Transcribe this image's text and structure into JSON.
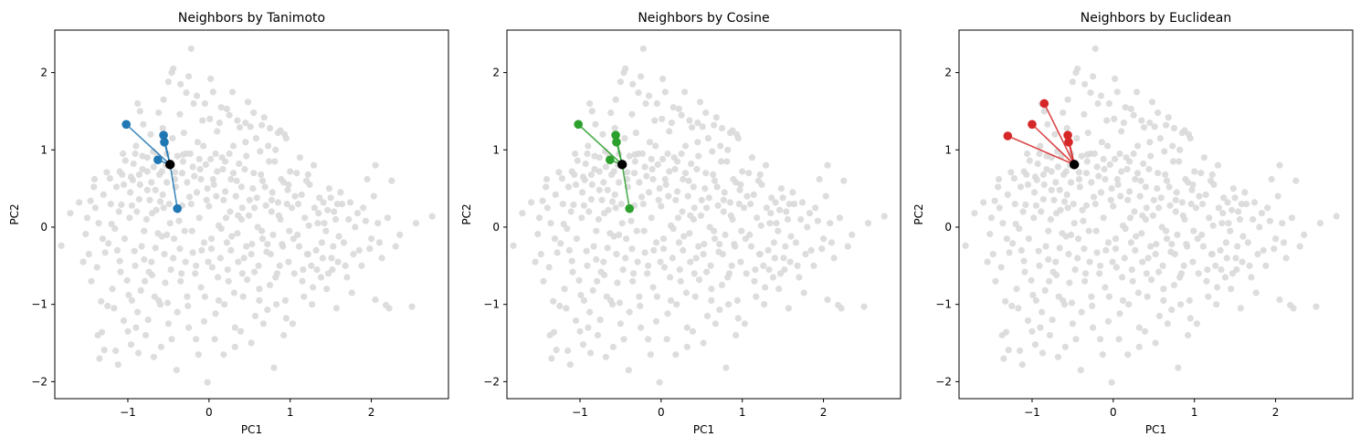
{
  "chart_data": [
    {
      "type": "scatter",
      "title": "Neighbors by Tanimoto",
      "xlabel": "PC1",
      "ylabel": "PC2",
      "xlim": [
        -1.9,
        2.95
      ],
      "ylim": [
        -2.22,
        2.55
      ],
      "xticks": [
        -1,
        0,
        1,
        2
      ],
      "yticks": [
        -2,
        -1,
        0,
        1,
        2
      ],
      "grid": false,
      "background_color": "#d9d9d9",
      "neighbor_color": "#1f77b4",
      "query_color": "#000000",
      "query": {
        "x": -0.48,
        "y": 0.81
      },
      "neighbors": [
        {
          "x": -1.02,
          "y": 1.33
        },
        {
          "x": -0.56,
          "y": 1.19
        },
        {
          "x": -0.55,
          "y": 1.1
        },
        {
          "x": -0.63,
          "y": 0.87
        },
        {
          "x": -0.39,
          "y": 0.24
        }
      ]
    },
    {
      "type": "scatter",
      "title": "Neighbors by Cosine",
      "xlabel": "PC1",
      "ylabel": "PC2",
      "xlim": [
        -1.9,
        2.95
      ],
      "ylim": [
        -2.22,
        2.55
      ],
      "xticks": [
        -1,
        0,
        1,
        2
      ],
      "yticks": [
        -2,
        -1,
        0,
        1,
        2
      ],
      "grid": false,
      "background_color": "#d9d9d9",
      "neighbor_color": "#2ca02c",
      "query_color": "#000000",
      "query": {
        "x": -0.48,
        "y": 0.81
      },
      "neighbors": [
        {
          "x": -1.02,
          "y": 1.33
        },
        {
          "x": -0.56,
          "y": 1.19
        },
        {
          "x": -0.55,
          "y": 1.1
        },
        {
          "x": -0.63,
          "y": 0.87
        },
        {
          "x": -0.39,
          "y": 0.24
        }
      ]
    },
    {
      "type": "scatter",
      "title": "Neighbors by Euclidean",
      "xlabel": "PC1",
      "ylabel": "PC2",
      "xlim": [
        -1.9,
        2.95
      ],
      "ylim": [
        -2.22,
        2.55
      ],
      "xticks": [
        -1,
        0,
        1,
        2
      ],
      "yticks": [
        -2,
        -1,
        0,
        1,
        2
      ],
      "grid": false,
      "background_color": "#d9d9d9",
      "neighbor_color": "#d62728",
      "query_color": "#000000",
      "query": {
        "x": -0.48,
        "y": 0.81
      },
      "neighbors": [
        {
          "x": -1.3,
          "y": 1.18
        },
        {
          "x": -1.0,
          "y": 1.33
        },
        {
          "x": -0.85,
          "y": 1.6
        },
        {
          "x": -0.56,
          "y": 1.19
        },
        {
          "x": -0.55,
          "y": 1.1
        }
      ]
    }
  ],
  "background_points": [
    [
      -1.82,
      -0.24
    ],
    [
      -1.71,
      0.18
    ],
    [
      -1.52,
      -0.09
    ],
    [
      -1.46,
      0.34
    ],
    [
      -1.4,
      0.25
    ],
    [
      -1.38,
      -0.52
    ],
    [
      -1.33,
      -0.96
    ],
    [
      -1.32,
      -1.36
    ],
    [
      -1.29,
      -1.59
    ],
    [
      -1.26,
      0.71
    ],
    [
      -1.24,
      -0.21
    ],
    [
      -1.2,
      0.04
    ],
    [
      -1.17,
      -1.05
    ],
    [
      -1.14,
      0.52
    ],
    [
      -1.12,
      -1.78
    ],
    [
      -1.1,
      -0.44
    ],
    [
      -1.08,
      0.29
    ],
    [
      -1.05,
      -1.21
    ],
    [
      -1.03,
      0.86
    ],
    [
      -1.01,
      -0.69
    ],
    [
      -0.98,
      0.12
    ],
    [
      -0.96,
      -1.52
    ],
    [
      -0.94,
      0.61
    ],
    [
      -0.92,
      -0.31
    ],
    [
      -0.9,
      1.05
    ],
    [
      -0.88,
      -1.1
    ],
    [
      -0.86,
      0.36
    ],
    [
      -0.84,
      -0.82
    ],
    [
      -0.82,
      0.75
    ],
    [
      -0.8,
      -0.05
    ],
    [
      -0.78,
      -1.4
    ],
    [
      -0.76,
      0.48
    ],
    [
      -0.74,
      -0.58
    ],
    [
      -0.72,
      1.2
    ],
    [
      -0.7,
      0.18
    ],
    [
      -0.68,
      -1.68
    ],
    [
      -0.66,
      -0.27
    ],
    [
      -0.64,
      0.92
    ],
    [
      -0.62,
      -0.95
    ],
    [
      -0.6,
      0.33
    ],
    [
      -0.58,
      -0.12
    ],
    [
      -0.56,
      1.65
    ],
    [
      -0.54,
      -0.72
    ],
    [
      -0.52,
      0.58
    ],
    [
      -0.5,
      -1.25
    ],
    [
      -0.48,
      0.05
    ],
    [
      -0.46,
      2.0
    ],
    [
      -0.44,
      -0.4
    ],
    [
      -0.42,
      0.71
    ],
    [
      -0.4,
      -1.85
    ],
    [
      -0.38,
      0.22
    ],
    [
      -0.36,
      1.46
    ],
    [
      -0.34,
      -0.6
    ],
    [
      -0.32,
      0.94
    ],
    [
      -0.3,
      -0.05
    ],
    [
      -0.28,
      1.74
    ],
    [
      -0.26,
      -1.02
    ],
    [
      -0.24,
      0.39
    ],
    [
      -0.22,
      2.31
    ],
    [
      -0.2,
      -0.33
    ],
    [
      -0.18,
      0.66
    ],
    [
      -0.16,
      -1.45
    ],
    [
      -0.14,
      1.1
    ],
    [
      -0.12,
      0.12
    ],
    [
      -0.1,
      -0.78
    ],
    [
      -0.08,
      1.38
    ],
    [
      -0.06,
      -0.2
    ],
    [
      -0.04,
      0.81
    ],
    [
      -0.02,
      -2.01
    ],
    [
      0.0,
      0.27
    ],
    [
      0.02,
      1.92
    ],
    [
      0.04,
      -0.52
    ],
    [
      0.06,
      0.55
    ],
    [
      0.08,
      -1.12
    ],
    [
      0.1,
      1.24
    ],
    [
      0.12,
      0.02
    ],
    [
      0.14,
      -0.4
    ],
    [
      0.16,
      0.9
    ],
    [
      0.18,
      -1.65
    ],
    [
      0.2,
      0.46
    ],
    [
      0.22,
      1.53
    ],
    [
      0.24,
      -0.7
    ],
    [
      0.26,
      0.2
    ],
    [
      0.28,
      -0.12
    ],
    [
      0.3,
      1.05
    ],
    [
      0.32,
      -1.3
    ],
    [
      0.34,
      0.6
    ],
    [
      0.36,
      -0.45
    ],
    [
      0.38,
      1.29
    ],
    [
      0.4,
      0.1
    ],
    [
      0.42,
      -0.9
    ],
    [
      0.44,
      0.75
    ],
    [
      0.46,
      -0.25
    ],
    [
      0.48,
      1.62
    ],
    [
      0.5,
      0.35
    ],
    [
      0.52,
      -1.5
    ],
    [
      0.54,
      0.5
    ],
    [
      0.56,
      -0.58
    ],
    [
      0.58,
      1.15
    ],
    [
      0.6,
      0.0
    ],
    [
      0.62,
      -0.8
    ],
    [
      0.64,
      0.68
    ],
    [
      0.66,
      -0.15
    ],
    [
      0.68,
      1.42
    ],
    [
      0.7,
      0.28
    ],
    [
      0.72,
      -1.07
    ],
    [
      0.74,
      0.85
    ],
    [
      0.76,
      -0.35
    ],
    [
      0.78,
      0.45
    ],
    [
      0.8,
      -1.82
    ],
    [
      0.82,
      1.0
    ],
    [
      0.84,
      -0.6
    ],
    [
      0.86,
      0.15
    ],
    [
      0.88,
      1.25
    ],
    [
      0.9,
      -0.22
    ],
    [
      0.92,
      0.58
    ],
    [
      0.94,
      -0.95
    ],
    [
      0.96,
      0.3
    ],
    [
      0.98,
      -0.45
    ],
    [
      1.0,
      0.72
    ],
    [
      1.03,
      -1.25
    ],
    [
      1.06,
      0.4
    ],
    [
      1.09,
      -0.1
    ],
    [
      1.12,
      0.9
    ],
    [
      1.15,
      -0.7
    ],
    [
      1.18,
      0.12
    ],
    [
      1.21,
      -0.35
    ],
    [
      1.24,
      0.55
    ],
    [
      1.27,
      -1.0
    ],
    [
      1.3,
      0.25
    ],
    [
      1.33,
      -0.55
    ],
    [
      1.36,
      0.38
    ],
    [
      1.39,
      -0.2
    ],
    [
      1.42,
      0.05
    ],
    [
      1.45,
      -0.8
    ],
    [
      1.48,
      0.5
    ],
    [
      1.51,
      -0.4
    ],
    [
      1.54,
      0.2
    ],
    [
      1.57,
      -1.05
    ],
    [
      1.6,
      -0.12
    ],
    [
      1.64,
      0.3
    ],
    [
      1.68,
      -0.5
    ],
    [
      1.72,
      0.1
    ],
    [
      1.76,
      -0.85
    ],
    [
      1.8,
      0.0
    ],
    [
      1.85,
      -0.3
    ],
    [
      1.9,
      0.25
    ],
    [
      1.95,
      0.62
    ],
    [
      2.0,
      -0.15
    ],
    [
      2.05,
      0.8
    ],
    [
      2.1,
      -0.2
    ],
    [
      2.18,
      -1.01
    ],
    [
      2.22,
      -1.05
    ],
    [
      2.25,
      0.6
    ],
    [
      2.35,
      -0.1
    ],
    [
      2.5,
      -1.03
    ],
    [
      2.55,
      0.05
    ],
    [
      2.75,
      0.14
    ],
    [
      2.05,
      -0.94
    ],
    [
      1.22,
      -0.35
    ],
    [
      -1.55,
      -0.45
    ],
    [
      -1.5,
      0.12
    ],
    [
      -1.45,
      -0.7
    ],
    [
      -1.42,
      0.52
    ],
    [
      -1.36,
      0.05
    ],
    [
      -1.35,
      -1.7
    ],
    [
      -1.3,
      0.42
    ],
    [
      -1.28,
      -0.33
    ],
    [
      -1.22,
      0.63
    ],
    [
      -1.19,
      -0.8
    ],
    [
      -1.16,
      -0.02
    ],
    [
      -1.15,
      -1.6
    ],
    [
      -1.11,
      0.2
    ],
    [
      -1.09,
      -0.58
    ],
    [
      -1.07,
      0.68
    ],
    [
      -1.04,
      -0.15
    ],
    [
      -1.0,
      -1.35
    ],
    [
      -0.97,
      0.45
    ],
    [
      -0.95,
      -0.95
    ],
    [
      -0.93,
      0.82
    ],
    [
      -0.91,
      -0.5
    ],
    [
      -0.89,
      0.2
    ],
    [
      -0.87,
      -1.63
    ],
    [
      -0.85,
      0.55
    ],
    [
      -0.83,
      -0.25
    ],
    [
      -0.81,
      1.33
    ],
    [
      -0.79,
      -0.7
    ],
    [
      -0.77,
      0.1
    ],
    [
      -0.75,
      -1.2
    ],
    [
      -0.73,
      0.35
    ],
    [
      -0.71,
      -0.45
    ],
    [
      -0.69,
      0.98
    ],
    [
      -0.67,
      -0.9
    ],
    [
      -0.65,
      0.22
    ],
    [
      -0.63,
      -0.08
    ],
    [
      -0.61,
      0.68
    ],
    [
      -0.59,
      -1.55
    ],
    [
      -0.57,
      0.42
    ],
    [
      -0.55,
      -0.35
    ],
    [
      -0.53,
      0.8
    ],
    [
      -0.51,
      -0.98
    ],
    [
      -0.49,
      0.3
    ],
    [
      -0.47,
      -0.55
    ],
    [
      -0.45,
      1.15
    ],
    [
      -0.43,
      -0.15
    ],
    [
      -0.41,
      0.52
    ],
    [
      -0.39,
      -1.1
    ],
    [
      -0.37,
      0.08
    ],
    [
      -0.35,
      -0.7
    ],
    [
      -0.33,
      0.28
    ],
    [
      -0.31,
      1.22
    ],
    [
      -0.29,
      -0.45
    ],
    [
      -0.27,
      0.58
    ],
    [
      -0.25,
      -1.3
    ],
    [
      -0.23,
      0.95
    ],
    [
      -0.21,
      -0.05
    ],
    [
      -0.19,
      1.6
    ],
    [
      -0.17,
      -0.6
    ],
    [
      -0.15,
      0.45
    ],
    [
      -0.13,
      -1.65
    ],
    [
      -0.11,
      0.75
    ],
    [
      -0.09,
      -0.3
    ],
    [
      -0.07,
      1.05
    ],
    [
      -0.05,
      -0.9
    ],
    [
      -0.03,
      0.35
    ],
    [
      -0.01,
      -0.45
    ],
    [
      0.01,
      1.4
    ],
    [
      0.03,
      -0.15
    ],
    [
      0.05,
      0.62
    ],
    [
      0.07,
      -1.45
    ],
    [
      0.09,
      0.4
    ],
    [
      0.11,
      -0.65
    ],
    [
      0.13,
      1.35
    ],
    [
      0.15,
      -0.02
    ],
    [
      0.17,
      0.75
    ],
    [
      0.19,
      -1.0
    ],
    [
      0.21,
      0.12
    ],
    [
      0.23,
      -0.55
    ],
    [
      0.25,
      0.95
    ],
    [
      0.27,
      -0.3
    ],
    [
      0.29,
      1.75
    ],
    [
      0.31,
      -0.85
    ],
    [
      0.33,
      0.4
    ],
    [
      0.35,
      -0.08
    ],
    [
      0.37,
      0.82
    ],
    [
      0.39,
      -1.35
    ],
    [
      0.41,
      0.25
    ],
    [
      0.43,
      -0.4
    ],
    [
      0.45,
      1.1
    ],
    [
      0.47,
      -0.68
    ],
    [
      0.49,
      0.15
    ],
    [
      0.51,
      1.3
    ],
    [
      0.53,
      -0.22
    ],
    [
      0.55,
      0.7
    ],
    [
      0.57,
      -1.15
    ],
    [
      0.59,
      0.38
    ],
    [
      0.61,
      -0.5
    ],
    [
      0.63,
      0.98
    ],
    [
      0.65,
      -0.05
    ],
    [
      0.67,
      -1.25
    ],
    [
      0.69,
      0.52
    ],
    [
      0.71,
      -0.32
    ],
    [
      0.73,
      1.05
    ],
    [
      0.75,
      -0.75
    ],
    [
      0.77,
      0.2
    ],
    [
      0.79,
      -0.1
    ],
    [
      0.81,
      0.85
    ],
    [
      0.83,
      -1.0
    ],
    [
      0.85,
      0.32
    ],
    [
      0.87,
      -0.5
    ],
    [
      0.89,
      0.62
    ],
    [
      0.91,
      -0.25
    ],
    [
      0.93,
      1.2
    ],
    [
      0.95,
      -1.18
    ],
    [
      0.97,
      0.48
    ],
    [
      0.99,
      -0.05
    ],
    [
      1.02,
      0.25
    ],
    [
      1.05,
      -0.6
    ],
    [
      1.08,
      0.7
    ],
    [
      1.11,
      -0.25
    ],
    [
      1.14,
      0.42
    ],
    [
      1.17,
      -0.9
    ],
    [
      1.2,
      0.6
    ],
    [
      1.23,
      0.02
    ],
    [
      1.26,
      -0.5
    ],
    [
      1.29,
      0.8
    ],
    [
      1.32,
      -0.3
    ],
    [
      1.35,
      0.18
    ],
    [
      1.38,
      -0.65
    ],
    [
      1.41,
      0.32
    ],
    [
      1.44,
      -0.05
    ],
    [
      1.47,
      -0.6
    ],
    [
      1.5,
      0.38
    ],
    [
      1.53,
      -0.25
    ],
    [
      1.56,
      0.1
    ],
    [
      1.59,
      -0.45
    ],
    [
      1.62,
      0.45
    ],
    [
      1.66,
      -0.2
    ],
    [
      1.7,
      -0.65
    ],
    [
      1.74,
      0.32
    ],
    [
      1.78,
      -0.35
    ],
    [
      1.83,
      0.18
    ],
    [
      1.88,
      -0.5
    ],
    [
      1.93,
      0.08
    ],
    [
      1.98,
      -0.28
    ],
    [
      2.03,
      0.4
    ],
    [
      2.08,
      0.05
    ],
    [
      2.13,
      -0.4
    ],
    [
      2.2,
      0.12
    ],
    [
      2.3,
      -0.25
    ],
    [
      -1.6,
      0.32
    ],
    [
      -1.48,
      -0.35
    ],
    [
      -1.41,
      0.62
    ],
    [
      -1.37,
      -1.4
    ],
    [
      -1.31,
      -0.15
    ],
    [
      -1.25,
      -1.02
    ],
    [
      -1.21,
      0.3
    ],
    [
      -1.13,
      -0.3
    ],
    [
      -1.06,
      0.95
    ],
    [
      -0.99,
      -0.88
    ],
    [
      -0.95,
      0.28
    ],
    [
      -0.9,
      -1.3
    ],
    [
      -0.86,
      0.68
    ],
    [
      -0.8,
      -0.42
    ],
    [
      -0.76,
      0.9
    ],
    [
      -0.7,
      -0.62
    ],
    [
      -0.66,
      0.48
    ],
    [
      -0.6,
      -1.0
    ],
    [
      -0.56,
      0.25
    ],
    [
      -0.52,
      -0.1
    ],
    [
      -0.46,
      -1.45
    ],
    [
      -0.42,
      0.62
    ],
    [
      -0.36,
      -0.28
    ],
    [
      -0.32,
      0.85
    ],
    [
      -0.27,
      -0.9
    ],
    [
      -0.22,
      0.3
    ],
    [
      -0.16,
      -0.5
    ],
    [
      -0.12,
      0.88
    ],
    [
      -0.06,
      -1.22
    ],
    [
      -0.02,
      0.5
    ],
    [
      0.03,
      -0.28
    ],
    [
      0.08,
      0.95
    ],
    [
      0.12,
      -0.95
    ],
    [
      0.18,
      0.35
    ],
    [
      0.22,
      -0.2
    ],
    [
      0.27,
      0.62
    ],
    [
      0.32,
      -1.55
    ],
    [
      0.36,
      0.15
    ],
    [
      0.41,
      -0.6
    ],
    [
      0.46,
      0.92
    ],
    [
      0.52,
      -0.35
    ],
    [
      0.56,
      0.25
    ],
    [
      0.62,
      -0.95
    ],
    [
      0.66,
      0.6
    ],
    [
      0.72,
      -0.22
    ],
    [
      0.77,
      0.35
    ],
    [
      0.82,
      -0.65
    ],
    [
      0.88,
      0.1
    ],
    [
      0.92,
      -1.4
    ],
    [
      0.98,
      0.55
    ],
    [
      1.04,
      -0.15
    ],
    [
      1.1,
      0.3
    ],
    [
      1.16,
      -0.55
    ],
    [
      1.22,
      0.68
    ],
    [
      1.28,
      -0.78
    ],
    [
      1.34,
      0.05
    ],
    [
      1.4,
      -0.4
    ],
    [
      1.46,
      0.22
    ],
    [
      1.52,
      -0.55
    ],
    [
      1.58,
      0.3
    ],
    [
      -0.88,
      1.6
    ],
    [
      -0.85,
      1.5
    ],
    [
      -0.62,
      1.48
    ],
    [
      -0.57,
      1.28
    ],
    [
      -0.5,
      1.88
    ],
    [
      -0.44,
      2.05
    ],
    [
      -0.35,
      1.85
    ],
    [
      -0.25,
      1.95
    ],
    [
      -0.15,
      1.7
    ],
    [
      -0.05,
      1.6
    ],
    [
      0.05,
      1.75
    ],
    [
      0.15,
      1.55
    ],
    [
      0.25,
      1.45
    ],
    [
      0.35,
      1.38
    ],
    [
      0.45,
      1.35
    ],
    [
      0.55,
      1.48
    ],
    [
      0.65,
      1.32
    ],
    [
      0.75,
      1.28
    ],
    [
      0.85,
      1.22
    ],
    [
      0.95,
      1.15
    ],
    [
      -1.1,
      0.72
    ],
    [
      -1.05,
      0.55
    ],
    [
      -0.96,
      0.65
    ],
    [
      -0.91,
      0.95
    ],
    [
      -0.82,
      0.92
    ],
    [
      -0.76,
      0.72
    ],
    [
      -0.71,
      0.58
    ],
    [
      -0.68,
      0.78
    ],
    [
      -0.58,
      0.72
    ],
    [
      -0.52,
      0.95
    ],
    [
      -0.39,
      0.92
    ],
    [
      -0.33,
      0.7
    ],
    [
      -0.28,
      0.95
    ],
    [
      -0.2,
      0.78
    ],
    [
      -0.1,
      0.62
    ],
    [
      0.02,
      0.88
    ],
    [
      0.1,
      0.72
    ],
    [
      0.2,
      0.85
    ],
    [
      0.3,
      0.7
    ],
    [
      0.4,
      0.52
    ]
  ]
}
